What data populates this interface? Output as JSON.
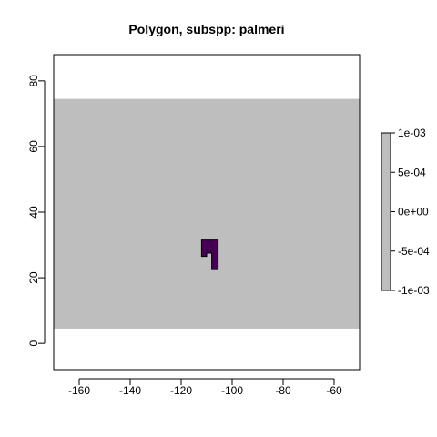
{
  "chart_data": {
    "type": "heatmap",
    "title": "Polygon, subspp: palmeri",
    "xlabel": "",
    "ylabel": "",
    "xlim": [
      -170,
      -50
    ],
    "ylim": [
      -8,
      88
    ],
    "x_ticks": [
      -160,
      -140,
      -120,
      -100,
      -80,
      -60
    ],
    "y_ticks": [
      0,
      20,
      40,
      60,
      80
    ],
    "raster_extent": {
      "xmin": -170,
      "xmax": -50,
      "ymin": 4.5,
      "ymax": 74.5
    },
    "raster_fill_color": "#bebebe",
    "polygon_color": "#440154",
    "polygon_vertices": [
      [
        -112,
        31.5
      ],
      [
        -105.5,
        31.5
      ],
      [
        -105.5,
        22.5
      ],
      [
        -108,
        22.5
      ],
      [
        -108,
        27.5
      ],
      [
        -110,
        27.5
      ],
      [
        -110,
        26.5
      ],
      [
        -112,
        26.5
      ]
    ],
    "legend": {
      "placement": "right",
      "color": "#bebebe",
      "range": [
        -0.001,
        0.001
      ],
      "tick_labels": [
        "1e-03",
        "5e-04",
        "0e+00",
        "-5e-04",
        "-1e-03"
      ]
    }
  }
}
